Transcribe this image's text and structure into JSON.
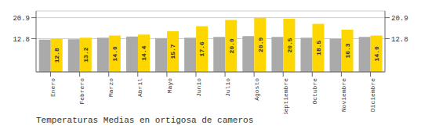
{
  "chart_data": {
    "type": "bar",
    "title": "Temperaturas Medias en ortigosa de cameros",
    "categories": [
      "Enero",
      "Febrero",
      "Marzo",
      "Abril",
      "Mayo",
      "Junio",
      "Julio",
      "Agosto",
      "Septiembre",
      "Octubre",
      "Noviembre",
      "Diciembre"
    ],
    "series": [
      {
        "color": "#AAAAAA",
        "values": [
          12.4,
          12.6,
          13.2,
          13.6,
          13.0,
          13.2,
          13.5,
          13.8,
          13.5,
          13.2,
          12.8,
          13.5
        ]
      },
      {
        "color": "#FFD700",
        "values": [
          12.8,
          13.2,
          14.0,
          14.4,
          15.7,
          17.6,
          20.0,
          20.9,
          20.5,
          18.5,
          16.3,
          14.0
        ],
        "data_labels": true,
        "value_labels": [
          "12.8",
          "13.2",
          "14.0",
          "14.4",
          "15.7",
          "17.6",
          "20.0",
          "20.9",
          "20.5",
          "18.5",
          "16.3",
          "14.0"
        ]
      }
    ],
    "ylim": [
      0,
      23.5
    ],
    "yticks": [
      12.8,
      20.9
    ],
    "y2lim": [
      0,
      23.5
    ],
    "y2ticks": [
      12.8,
      20.9
    ],
    "grid": true
  }
}
